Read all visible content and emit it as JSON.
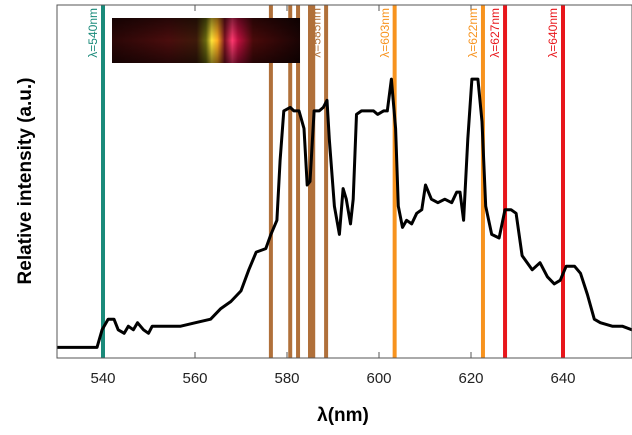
{
  "chart_data": {
    "type": "line",
    "xlabel": "λ(nm)",
    "ylabel": "Relative intensity (a.u.)",
    "xlim": [
      530,
      655
    ],
    "ylim": [
      0,
      1
    ],
    "xticks": [
      540,
      560,
      580,
      600,
      620,
      640
    ],
    "series": [
      {
        "color": "#000000",
        "x": [
          530.0,
          532.8,
          538.7,
          539.8,
          541.1,
          542.4,
          543.3,
          544.6,
          545.5,
          546.6,
          547.5,
          548.8,
          549.9,
          550.7,
          553.6,
          556.9,
          560.1,
          563.4,
          565.6,
          567.8,
          570.0,
          571.7,
          573.3,
          575.4,
          576.5,
          577.8,
          578.5,
          579.3,
          580.7,
          581.5,
          582.6,
          583.7,
          584.4,
          585.0,
          585.9,
          587.0,
          587.9,
          588.7,
          589.2,
          590.3,
          591.4,
          592.2,
          592.9,
          593.8,
          594.4,
          595.1,
          596.2,
          598.8,
          599.7,
          601.0,
          601.8,
          602.7,
          603.6,
          604.2,
          605.1,
          606.0,
          607.1,
          608.2,
          609.3,
          610.1,
          611.4,
          612.8,
          614.3,
          615.8,
          616.9,
          617.6,
          618.4,
          619.3,
          620.2,
          621.5,
          622.4,
          623.2,
          624.5,
          626.1,
          627.4,
          628.7,
          629.8,
          631.1,
          633.3,
          635.0,
          636.6,
          638.1,
          639.4,
          640.7,
          642.5,
          643.8,
          645.3,
          646.8,
          648.1,
          650.7,
          652.9,
          655.0
        ],
        "values": [
          0.03,
          0.03,
          0.03,
          0.08,
          0.11,
          0.11,
          0.08,
          0.07,
          0.09,
          0.08,
          0.1,
          0.08,
          0.07,
          0.09,
          0.09,
          0.09,
          0.1,
          0.11,
          0.14,
          0.16,
          0.19,
          0.25,
          0.3,
          0.31,
          0.35,
          0.39,
          0.56,
          0.7,
          0.71,
          0.7,
          0.7,
          0.65,
          0.49,
          0.5,
          0.7,
          0.7,
          0.71,
          0.73,
          0.62,
          0.43,
          0.35,
          0.48,
          0.45,
          0.38,
          0.45,
          0.69,
          0.7,
          0.7,
          0.69,
          0.7,
          0.7,
          0.79,
          0.65,
          0.43,
          0.37,
          0.39,
          0.38,
          0.41,
          0.42,
          0.49,
          0.45,
          0.44,
          0.45,
          0.44,
          0.47,
          0.47,
          0.39,
          0.62,
          0.79,
          0.79,
          0.67,
          0.43,
          0.35,
          0.34,
          0.42,
          0.42,
          0.41,
          0.29,
          0.25,
          0.27,
          0.23,
          0.21,
          0.22,
          0.26,
          0.26,
          0.24,
          0.18,
          0.11,
          0.1,
          0.09,
          0.09,
          0.08
        ]
      }
    ],
    "vlines": [
      {
        "x": 540,
        "color": "#1a8a7a",
        "label": "λ=540nm"
      },
      {
        "x": 576.5,
        "color": "#b0703a"
      },
      {
        "x": 580.7,
        "color": "#b0703a"
      },
      {
        "x": 582.4,
        "color": "#b0703a"
      },
      {
        "x": 585.0,
        "color": "#b0703a"
      },
      {
        "x": 585.7,
        "color": "#b0703a"
      },
      {
        "x": 588.5,
        "color": "#b0703a",
        "label": "λ=585nm"
      },
      {
        "x": 603.4,
        "color": "#f7931e",
        "label": "λ=603nm"
      },
      {
        "x": 622.6,
        "color": "#f7931e",
        "label": "λ=622nm"
      },
      {
        "x": 627.4,
        "color": "#e8161b",
        "label": "λ=627nm"
      },
      {
        "x": 640,
        "color": "#e8161b",
        "label": "λ=640nm"
      }
    ]
  }
}
